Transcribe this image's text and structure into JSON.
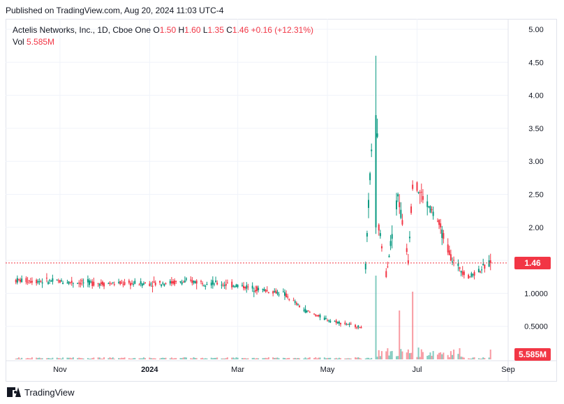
{
  "header": {
    "published": "Published on TradingView.com, Aug 20, 2024 11:03 UTC-4"
  },
  "legend": {
    "symbol": "Actelis Networks, Inc., 1D, Cboe One",
    "o_label": "O",
    "o_value": "1.50",
    "h_label": "H",
    "h_value": "1.60",
    "l_label": "L",
    "l_value": "1.35",
    "c_label": "C",
    "c_value": "1.46",
    "change": "+0.16 (+12.31%)",
    "vol_label": "Vol",
    "vol_value": "5.585M"
  },
  "price_tag": "1.46",
  "volume_tag": "5.585M",
  "footer": {
    "brand": "TradingView"
  },
  "colors": {
    "up": "#089981",
    "down": "#f23645",
    "grid": "#f0f3fa",
    "text": "#131722"
  },
  "chart_data": {
    "type": "candlestick",
    "y_axis_ticks": [
      "5.00",
      "4.50",
      "4.00",
      "3.50",
      "3.00",
      "2.50",
      "2.00",
      "1.50",
      "1.0000",
      "0.5000"
    ],
    "y_axis_values": [
      5.0,
      4.5,
      4.0,
      3.5,
      3.0,
      2.5,
      2.0,
      1.5,
      1.0,
      0.5
    ],
    "ylim": [
      0.0,
      5.2
    ],
    "x_axis_labels": [
      "Nov",
      "2024",
      "Mar",
      "May",
      "Jul",
      "Sep"
    ],
    "last_close": 1.46,
    "last_volume": "5.585M",
    "key_points": [
      {
        "date": "2023-10-01",
        "close": 1.2
      },
      {
        "date": "2023-11-01",
        "close": 1.18
      },
      {
        "date": "2023-12-01",
        "close": 1.15
      },
      {
        "date": "2024-01-01",
        "close": 1.15
      },
      {
        "date": "2024-02-01",
        "close": 1.18
      },
      {
        "date": "2024-03-01",
        "close": 1.12
      },
      {
        "date": "2024-04-01",
        "close": 1.0
      },
      {
        "date": "2024-04-15",
        "close": 0.75
      },
      {
        "date": "2024-05-01",
        "close": 0.6
      },
      {
        "date": "2024-05-25",
        "close": 0.48
      },
      {
        "date": "2024-06-03",
        "close": 4.6
      },
      {
        "date": "2024-06-05",
        "close": 2.0
      },
      {
        "date": "2024-06-10",
        "close": 1.3
      },
      {
        "date": "2024-06-18",
        "close": 2.5
      },
      {
        "date": "2024-06-25",
        "close": 1.5
      },
      {
        "date": "2024-06-28",
        "close": 2.7
      },
      {
        "date": "2024-07-15",
        "close": 2.1
      },
      {
        "date": "2024-07-25",
        "close": 1.5
      },
      {
        "date": "2024-08-05",
        "close": 1.25
      },
      {
        "date": "2024-08-20",
        "close": 1.46
      }
    ]
  }
}
